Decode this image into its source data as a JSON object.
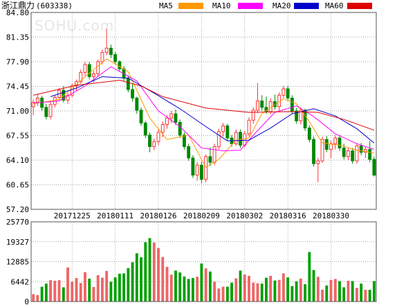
{
  "header": {
    "title": "浙江鼎力",
    "code": "(603338)",
    "watermark": "SOHU.com"
  },
  "legend": [
    {
      "label": "MA5",
      "color": "#ff9900"
    },
    {
      "label": "MA10",
      "color": "#ff00ff"
    },
    {
      "label": "MA20",
      "color": "#0000cc"
    },
    {
      "label": "MA60",
      "color": "#dd0000"
    }
  ],
  "colors": {
    "up": "#ff3333",
    "down": "#008800",
    "volUp": "#ee6666",
    "volDown": "#00a000",
    "grid": "#888888"
  },
  "chart_data": [
    {
      "type": "candlestick",
      "yticks": [
        "84.80",
        "81.35",
        "77.90",
        "74.45",
        "71.00",
        "67.55",
        "64.10",
        "60.65",
        "57.20"
      ],
      "ylim": [
        57.2,
        84.8
      ],
      "xticks": [
        "20171225",
        "20180111",
        "20180126",
        "20180209",
        "20180302",
        "20180316",
        "20180330"
      ],
      "xtick_index": [
        9,
        19,
        29,
        39,
        49,
        59,
        69
      ],
      "candles": [
        [
          71.6,
          72.6,
          70.4,
          72.2
        ],
        [
          72.2,
          73.4,
          71.7,
          72.8
        ],
        [
          72.8,
          73.1,
          71.0,
          71.5
        ],
        [
          71.5,
          72.0,
          69.8,
          70.2
        ],
        [
          70.2,
          72.4,
          69.8,
          71.9
        ],
        [
          71.9,
          73.2,
          71.5,
          72.9
        ],
        [
          72.9,
          74.2,
          72.5,
          73.9
        ],
        [
          73.9,
          74.5,
          72.2,
          72.5
        ],
        [
          72.5,
          73.5,
          72.0,
          73.2
        ],
        [
          73.2,
          74.8,
          72.9,
          74.5
        ],
        [
          74.5,
          75.4,
          73.8,
          75.1
        ],
        [
          75.1,
          76.8,
          74.8,
          76.4
        ],
        [
          76.4,
          77.9,
          75.9,
          77.5
        ],
        [
          77.5,
          77.9,
          75.4,
          75.8
        ],
        [
          75.8,
          76.6,
          75.0,
          76.2
        ],
        [
          76.2,
          78.2,
          75.8,
          77.9
        ],
        [
          77.9,
          79.6,
          77.5,
          79.2
        ],
        [
          79.2,
          82.5,
          78.8,
          79.8
        ],
        [
          79.8,
          80.3,
          78.4,
          78.9
        ],
        [
          78.9,
          79.3,
          77.6,
          77.9
        ],
        [
          77.9,
          78.1,
          76.5,
          76.9
        ],
        [
          76.9,
          77.3,
          75.2,
          75.6
        ],
        [
          75.6,
          76.0,
          73.6,
          74.0
        ],
        [
          74.0,
          74.8,
          72.3,
          72.8
        ],
        [
          72.8,
          73.0,
          70.6,
          71.1
        ],
        [
          71.1,
          71.5,
          68.9,
          69.3
        ],
        [
          69.3,
          69.6,
          67.2,
          67.6
        ],
        [
          67.6,
          68.0,
          65.2,
          66.0
        ],
        [
          66.0,
          67.1,
          65.5,
          66.7
        ],
        [
          66.7,
          68.4,
          66.2,
          68.0
        ],
        [
          68.0,
          69.5,
          67.3,
          69.1
        ],
        [
          69.1,
          70.4,
          68.5,
          70.0
        ],
        [
          70.0,
          71.0,
          69.3,
          70.6
        ],
        [
          70.6,
          71.2,
          69.0,
          69.4
        ],
        [
          69.4,
          69.8,
          67.2,
          67.6
        ],
        [
          67.6,
          68.0,
          65.6,
          66.0
        ],
        [
          66.0,
          66.4,
          64.0,
          64.4
        ],
        [
          64.4,
          64.8,
          61.6,
          62.0
        ],
        [
          62.0,
          63.8,
          61.2,
          63.4
        ],
        [
          63.4,
          63.9,
          60.9,
          61.4
        ],
        [
          61.4,
          64.9,
          61.0,
          64.6
        ],
        [
          64.6,
          65.9,
          63.3,
          63.8
        ],
        [
          63.8,
          66.4,
          63.4,
          66.0
        ],
        [
          66.0,
          68.5,
          65.6,
          68.1
        ],
        [
          68.1,
          69.3,
          67.4,
          68.9
        ],
        [
          68.9,
          69.2,
          66.8,
          67.2
        ],
        [
          67.2,
          67.6,
          66.0,
          66.4
        ],
        [
          66.4,
          68.4,
          66.1,
          68.0
        ],
        [
          68.0,
          68.4,
          65.8,
          66.2
        ],
        [
          66.2,
          68.2,
          65.9,
          67.8
        ],
        [
          67.8,
          70.1,
          67.4,
          69.7
        ],
        [
          69.7,
          71.5,
          69.2,
          71.1
        ],
        [
          71.1,
          74.9,
          70.7,
          72.4
        ],
        [
          72.4,
          73.2,
          71.0,
          71.5
        ],
        [
          71.5,
          73.0,
          70.6,
          70.9
        ],
        [
          70.9,
          72.8,
          70.5,
          72.3
        ],
        [
          72.3,
          73.3,
          71.2,
          71.6
        ],
        [
          71.6,
          73.6,
          71.0,
          73.2
        ],
        [
          73.2,
          74.5,
          72.8,
          74.1
        ],
        [
          74.1,
          74.5,
          72.4,
          72.8
        ],
        [
          72.8,
          73.2,
          70.6,
          71.0
        ],
        [
          71.0,
          71.4,
          69.2,
          69.6
        ],
        [
          69.6,
          71.5,
          69.1,
          71.1
        ],
        [
          71.1,
          71.3,
          68.2,
          68.6
        ],
        [
          68.6,
          69.0,
          66.6,
          67.0
        ],
        [
          67.0,
          67.4,
          63.2,
          63.6
        ],
        [
          63.6,
          64.4,
          61.0,
          64.0
        ],
        [
          64.0,
          67.4,
          63.7,
          67.0
        ],
        [
          67.0,
          67.5,
          65.2,
          65.6
        ],
        [
          65.6,
          66.8,
          64.4,
          66.4
        ],
        [
          66.4,
          67.6,
          65.6,
          67.2
        ],
        [
          67.2,
          67.6,
          65.4,
          65.8
        ],
        [
          65.8,
          66.4,
          64.2,
          64.6
        ],
        [
          64.6,
          65.8,
          64.1,
          65.4
        ],
        [
          65.4,
          65.8,
          63.6,
          64.0
        ],
        [
          64.0,
          66.5,
          63.6,
          66.1
        ],
        [
          66.1,
          66.5,
          64.8,
          65.2
        ],
        [
          65.2,
          66.0,
          64.4,
          65.6
        ],
        [
          65.6,
          66.8,
          63.8,
          64.2
        ],
        [
          64.2,
          64.6,
          61.8,
          62.0
        ]
      ],
      "ma": {
        "MA5": [
          [
            0,
            72.0
          ],
          [
            6,
            72.6
          ],
          [
            12,
            75.8
          ],
          [
            17,
            78.3
          ],
          [
            22,
            76.5
          ],
          [
            27,
            70.0
          ],
          [
            31,
            67.0
          ],
          [
            36,
            67.6
          ],
          [
            40,
            63.1
          ],
          [
            43,
            64.2
          ],
          [
            47,
            66.9
          ],
          [
            50,
            67.2
          ],
          [
            53,
            70.6
          ],
          [
            58,
            72.7
          ],
          [
            61,
            72.0
          ],
          [
            64,
            69.5
          ],
          [
            67,
            66.5
          ],
          [
            71,
            66.2
          ],
          [
            75,
            65.5
          ],
          [
            79,
            65.1
          ]
        ],
        "MA10": [
          [
            0,
            72.1
          ],
          [
            6,
            72.4
          ],
          [
            12,
            74.5
          ],
          [
            18,
            77.2
          ],
          [
            24,
            75.2
          ],
          [
            29,
            71.0
          ],
          [
            34,
            68.8
          ],
          [
            39,
            65.8
          ],
          [
            44,
            65.4
          ],
          [
            48,
            65.5
          ],
          [
            51,
            67.6
          ],
          [
            56,
            70.8
          ],
          [
            61,
            71.7
          ],
          [
            65,
            70.2
          ],
          [
            70,
            67.8
          ],
          [
            75,
            66.4
          ],
          [
            79,
            65.6
          ]
        ],
        "MA20": [
          [
            4,
            73.0
          ],
          [
            10,
            74.2
          ],
          [
            16,
            75.8
          ],
          [
            22,
            75.6
          ],
          [
            28,
            73.5
          ],
          [
            34,
            71.3
          ],
          [
            40,
            68.8
          ],
          [
            45,
            66.8
          ],
          [
            50,
            66.9
          ],
          [
            55,
            68.6
          ],
          [
            60,
            70.6
          ],
          [
            65,
            71.3
          ],
          [
            70,
            70.3
          ],
          [
            75,
            68.5
          ],
          [
            79,
            66.5
          ]
        ],
        "MA60": [
          [
            0,
            73.2
          ],
          [
            10,
            74.6
          ],
          [
            20,
            75.3
          ],
          [
            25,
            74.5
          ],
          [
            30,
            73.0
          ],
          [
            40,
            71.4
          ],
          [
            50,
            70.8
          ],
          [
            60,
            70.9
          ],
          [
            66,
            70.8
          ],
          [
            72,
            69.8
          ],
          [
            79,
            68.3
          ]
        ]
      }
    },
    {
      "type": "bar",
      "yticks": [
        "25770",
        "19327",
        "12885",
        "6442",
        "0"
      ],
      "ylim": [
        0,
        25770
      ],
      "volumes": [
        2400,
        2100,
        4800,
        5800,
        6900,
        6700,
        6900,
        4600,
        11000,
        6400,
        7600,
        6000,
        9500,
        7400,
        4700,
        8500,
        7700,
        9900,
        6400,
        7800,
        9000,
        9100,
        10800,
        12700,
        15600,
        14300,
        19200,
        20500,
        19100,
        17300,
        14400,
        11200,
        8700,
        10000,
        9400,
        8100,
        7300,
        7600,
        8000,
        12300,
        10700,
        9700,
        6400,
        4200,
        4800,
        4800,
        6100,
        7500,
        10000,
        8700,
        8300,
        6100,
        5900,
        5800,
        7700,
        8300,
        6800,
        7000,
        9100,
        7800,
        5000,
        6500,
        7400,
        5600,
        16000,
        10200,
        8000,
        3800,
        5200,
        7000,
        7300,
        6600,
        4600,
        6700,
        6600,
        4400,
        5800,
        3800,
        3800,
        6600
      ]
    }
  ]
}
